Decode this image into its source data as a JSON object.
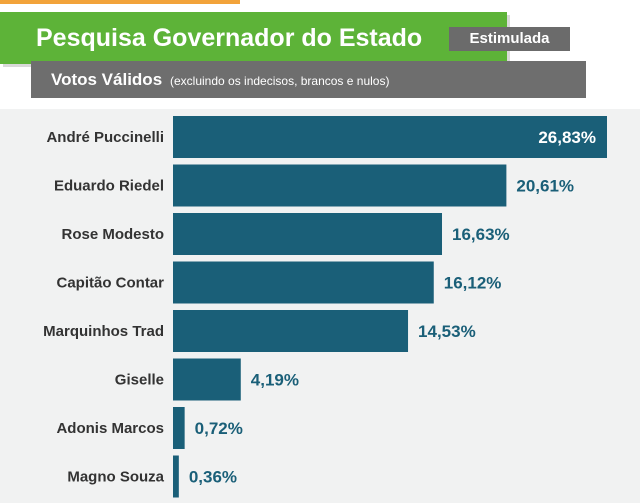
{
  "header": {
    "title": "Pesquisa Governador do Estado",
    "badge": "Estimulada",
    "subtitle_main": "Votos Válidos",
    "subtitle_note": "(excluindo os indecisos, brancos e nulos)"
  },
  "colors": {
    "title_bar": "#5db338",
    "accent_strip": "#f2a33a",
    "badge_bg": "#6b6b6b",
    "subtitle_bg": "#6e6e6e",
    "bar": "#1a5f78",
    "panel": "#f1f2f2",
    "value_text": "#1a5f78",
    "value_text_inside": "#ffffff"
  },
  "chart_data": {
    "type": "bar",
    "orientation": "horizontal",
    "title": "Pesquisa Governador do Estado",
    "subtitle": "Votos Válidos (excluindo os indecisos, brancos e nulos)",
    "categories": [
      "André Puccinelli",
      "Eduardo Riedel",
      "Rose Modesto",
      "Capitão Contar",
      "Marquinhos Trad",
      "Giselle",
      "Adonis Marcos",
      "Magno Souza"
    ],
    "values": [
      26.83,
      20.61,
      16.63,
      16.12,
      14.53,
      4.19,
      0.72,
      0.36
    ],
    "value_labels": [
      "26,83%",
      "20,61%",
      "16,63%",
      "16,12%",
      "14,53%",
      "4,19%",
      "0,72%",
      "0,36%"
    ],
    "xlim": [
      0,
      26.83
    ],
    "grid": false,
    "legend": "none"
  }
}
